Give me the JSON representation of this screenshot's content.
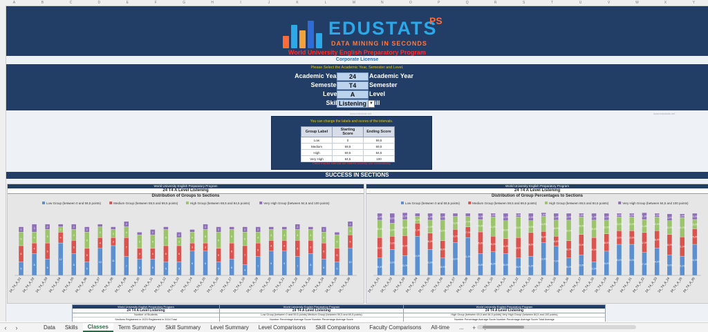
{
  "column_letters": [
    "A",
    "B",
    "C",
    "D",
    "E",
    "F",
    "G",
    "H",
    "I",
    "J",
    "K",
    "L",
    "M",
    "N",
    "O",
    "P",
    "Q",
    "R",
    "S",
    "T",
    "U",
    "V",
    "W",
    "X",
    "Y"
  ],
  "logo": {
    "title": "EDUSTATS",
    "suffix": "PS",
    "tagline": "DATA MINING IN SECONDS",
    "colors": [
      "#ff6a3d",
      "#2ca8e8",
      "#f2a33a",
      "#2e6bd6",
      "#ffffff"
    ]
  },
  "program_title": "World University English Preparatory Program",
  "license": "Corporate License",
  "selection": {
    "note": "Please Select the Academic Year, Semester and Level.",
    "rows": [
      {
        "label": "Academic Year",
        "value": "24",
        "echo": "Academic Year"
      },
      {
        "label": "Semester",
        "value": "T4",
        "echo": "Semester"
      },
      {
        "label": "Level",
        "value": "A",
        "echo": "Level"
      },
      {
        "label": "Skill",
        "value": "Listening",
        "echo": "ill"
      }
    ]
  },
  "watermark": "www.edustats.net",
  "intervals": {
    "note": "You can change the labels and scores of the intervals.",
    "headers": [
      "Group Label",
      "Starting Score",
      "Ending Score"
    ],
    "rows": [
      [
        "Low",
        "0",
        "59,5"
      ],
      [
        "Medium",
        "59,5",
        "69,5"
      ],
      [
        "High",
        "69,5",
        "84,5"
      ],
      [
        "Very High",
        "84,5",
        "100"
      ]
    ],
    "warning": "Check that the intervals are entered correctly and consecutively."
  },
  "section_title": "SUCCESS IN SECTIONS",
  "chart_data": [
    {
      "type": "bar",
      "stacked": true,
      "header": "World University English Preparatory Program",
      "subtitle": "24 T4 A Level Listening",
      "title": "Distribution of Groups to Sections",
      "legend": [
        "Low Group (between 0 and 59,5 points)",
        "Medium Group (between 59,5 and 69,5 points)",
        "High Group (between 69,5 and 84,5 points)",
        "Very High Group (between 84,5 and 100 points)"
      ],
      "legend_position": "top",
      "colors": [
        "#5b8fd0",
        "#d9534f",
        "#9cc46c",
        "#8e6fb8"
      ],
      "categories": [
        "24_T4_A_01",
        "24_T4_A_02",
        "24_T4_A_03",
        "24_T4_A_04",
        "24_T4_A_05",
        "24_T4_A_06",
        "24_T4_A_07",
        "24_T4_A_08",
        "24_T4_A_09",
        "24_T4_A_10",
        "24_T4_A_11",
        "24_T4_A_12",
        "24_T4_A_13",
        "24_T4_A_14",
        "24_T4_A_15",
        "24_T4_A_16",
        "24_T4_A_17",
        "24_T4_A_18",
        "24_T4_A_19",
        "24_T4_A_20",
        "24_T4_A_21",
        "24_T4_A_22",
        "24_T4_A_23",
        "24_T4_A_24",
        "24_T4_A_25",
        "24_T4_A_26"
      ],
      "series": [
        {
          "name": "Low",
          "values": [
            5,
            8,
            6,
            12,
            8,
            5,
            10,
            11,
            7,
            6,
            6,
            5,
            5,
            9,
            9,
            5,
            6,
            4,
            7,
            9,
            9,
            7,
            8,
            6,
            5,
            10
          ]
        },
        {
          "name": "Medium",
          "values": [
            6,
            4,
            6,
            4,
            5,
            5,
            4,
            3,
            7,
            4,
            4,
            6,
            6,
            3,
            3,
            5,
            6,
            7,
            5,
            4,
            4,
            6,
            5,
            6,
            5,
            5
          ]
        },
        {
          "name": "High",
          "values": [
            5,
            4,
            5,
            2,
            4,
            6,
            4,
            3,
            4,
            5,
            5,
            6,
            3,
            4,
            5,
            6,
            5,
            5,
            4,
            4,
            4,
            4,
            4,
            4,
            5,
            3
          ]
        },
        {
          "name": "Very High",
          "values": [
            2,
            3,
            2,
            1,
            2,
            2,
            1,
            1,
            2,
            1,
            2,
            1,
            2,
            1,
            2,
            2,
            1,
            2,
            2,
            1,
            1,
            2,
            1,
            2,
            1,
            2
          ]
        }
      ],
      "grid": false
    },
    {
      "type": "bar",
      "stacked": true,
      "header": "World University English Preparatory Program",
      "subtitle": "24 T4 A Level Listening",
      "title": "Distribution of Group Percentages to Sections",
      "legend": [
        "Low Group (between 0 and 59,5 points)",
        "Medium Group (between 59,5 and 69,5 points)",
        "High Group (between 69,5 and 84,5 points)",
        "Very High Group (between 84,5 and 100 points)"
      ],
      "legend_position": "top",
      "colors": [
        "#5b8fd0",
        "#d9534f",
        "#9cc46c",
        "#8e6fb8"
      ],
      "categories": [
        "24_T4_A_01",
        "24_T4_A_02",
        "24_T4_A_03",
        "24_T4_A_04",
        "24_T4_A_05",
        "24_T4_A_06",
        "24_T4_A_07",
        "24_T4_A_08",
        "24_T4_A_09",
        "24_T4_A_10",
        "24_T4_A_11",
        "24_T4_A_12",
        "24_T4_A_13",
        "24_T4_A_14",
        "24_T4_A_15",
        "24_T4_A_16",
        "24_T4_A_17",
        "24_T4_A_18",
        "24_T4_A_19",
        "24_T4_A_20",
        "24_T4_A_21",
        "24_T4_A_22",
        "24_T4_A_23",
        "24_T4_A_24",
        "24_T4_A_25",
        "24_T4_A_26"
      ],
      "series": [
        {
          "name": "Low",
          "values": [
            28,
            42,
            32,
            63,
            42,
            28,
            53,
            61,
            35,
            38,
            35,
            28,
            31,
            53,
            47,
            28,
            33,
            22,
            39,
            50,
            50,
            37,
            44,
            33,
            31,
            50
          ]
        },
        {
          "name": "Medium",
          "values": [
            33,
            21,
            32,
            21,
            26,
            28,
            21,
            17,
            35,
            25,
            24,
            33,
            38,
            18,
            16,
            28,
            33,
            39,
            28,
            22,
            22,
            32,
            28,
            33,
            31,
            25
          ]
        },
        {
          "name": "High",
          "values": [
            28,
            21,
            26,
            11,
            21,
            33,
            21,
            17,
            20,
            31,
            29,
            33,
            19,
            24,
            26,
            33,
            28,
            28,
            22,
            22,
            22,
            21,
            22,
            22,
            31,
            15
          ]
        },
        {
          "name": "Very High",
          "values": [
            11,
            16,
            11,
            5,
            11,
            11,
            5,
            5,
            10,
            6,
            12,
            6,
            12,
            6,
            11,
            11,
            6,
            11,
            11,
            6,
            6,
            11,
            6,
            11,
            6,
            10
          ]
        }
      ],
      "grid": false
    }
  ],
  "bottom_table": {
    "panels": [
      {
        "header": "World University English Preparatory Program",
        "title": "24 T4 A Level Listening",
        "sub": "Number of Students",
        "cols": "Sections   Registered in 2023   Registered in 2024   Total"
      },
      {
        "header": "World University English Preparatory Program",
        "title": "24 T4 A Level Listening",
        "sub": "Low Group (between 0 and 59,5 points)   Medium Group (between 59,5 and 69,5 points)",
        "cols": "Number   Percentage   Average Score   Number   Percentage   Average Score"
      },
      {
        "header": "World University English Preparatory Program",
        "title": "24 T4 A Level Listening",
        "sub": "High Group (between 69,5 and 84,5 points)   Very High Group (between 84,5 and 100 points)",
        "cols": "Number   Percentage   Average Score   Number   Percentage   Average Score   Total   Average"
      }
    ]
  },
  "tabs": [
    "Data",
    "Skills",
    "Classes",
    "Term Summary",
    "Skill Summary",
    "Level Summary",
    "Level Comparisons",
    "Skill Comparisons",
    "Faculty Comparisons",
    "All-time",
    "..."
  ],
  "active_tab": "Classes",
  "nav": {
    "prev": "‹",
    "next": "›",
    "add": "+",
    "more": "⋮"
  }
}
